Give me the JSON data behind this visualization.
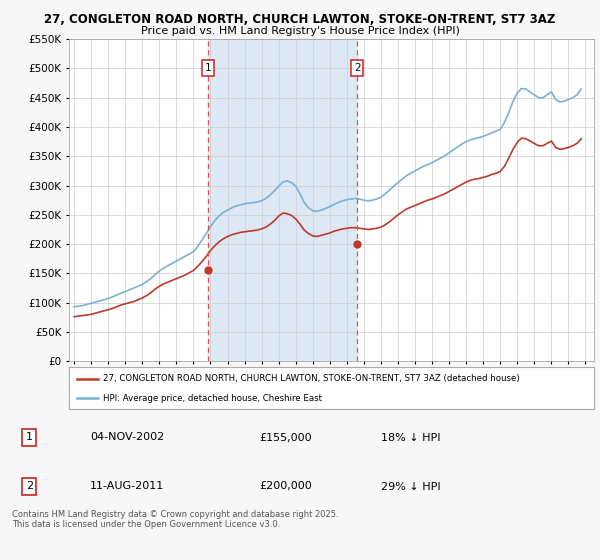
{
  "title": "27, CONGLETON ROAD NORTH, CHURCH LAWTON, STOKE-ON-TRENT, ST7 3AZ",
  "subtitle": "Price paid vs. HM Land Registry's House Price Index (HPI)",
  "bg_color": "#f7f7f7",
  "plot_bg_color": "#ffffff",
  "grid_color": "#cccccc",
  "hpi_color": "#7ab0d4",
  "price_color": "#c0392b",
  "marker_color": "#c0392b",
  "vline_color": "#e05050",
  "shade_color": "#dde8f5",
  "ylim": [
    0,
    550000
  ],
  "yticks": [
    0,
    50000,
    100000,
    150000,
    200000,
    250000,
    300000,
    350000,
    400000,
    450000,
    500000,
    550000
  ],
  "sale1_date": 2002.84,
  "sale1_price": 155000,
  "sale1_label": "1",
  "sale2_date": 2011.61,
  "sale2_price": 200000,
  "sale2_label": "2",
  "legend_line1": "27, CONGLETON ROAD NORTH, CHURCH LAWTON, STOKE-ON-TRENT, ST7 3AZ (detached house)",
  "legend_line2": "HPI: Average price, detached house, Cheshire East",
  "table_row1": [
    "1",
    "04-NOV-2002",
    "£155,000",
    "18% ↓ HPI"
  ],
  "table_row2": [
    "2",
    "11-AUG-2011",
    "£200,000",
    "29% ↓ HPI"
  ],
  "footer": "Contains HM Land Registry data © Crown copyright and database right 2025.\nThis data is licensed under the Open Government Licence v3.0.",
  "hpi_x": [
    1995.0,
    1995.25,
    1995.5,
    1995.75,
    1996.0,
    1996.25,
    1996.5,
    1996.75,
    1997.0,
    1997.25,
    1997.5,
    1997.75,
    1998.0,
    1998.25,
    1998.5,
    1998.75,
    1999.0,
    1999.25,
    1999.5,
    1999.75,
    2000.0,
    2000.25,
    2000.5,
    2000.75,
    2001.0,
    2001.25,
    2001.5,
    2001.75,
    2002.0,
    2002.25,
    2002.5,
    2002.75,
    2003.0,
    2003.25,
    2003.5,
    2003.75,
    2004.0,
    2004.25,
    2004.5,
    2004.75,
    2005.0,
    2005.25,
    2005.5,
    2005.75,
    2006.0,
    2006.25,
    2006.5,
    2006.75,
    2007.0,
    2007.25,
    2007.5,
    2007.75,
    2008.0,
    2008.25,
    2008.5,
    2008.75,
    2009.0,
    2009.25,
    2009.5,
    2009.75,
    2010.0,
    2010.25,
    2010.5,
    2010.75,
    2011.0,
    2011.25,
    2011.5,
    2011.75,
    2012.0,
    2012.25,
    2012.5,
    2012.75,
    2013.0,
    2013.25,
    2013.5,
    2013.75,
    2014.0,
    2014.25,
    2014.5,
    2014.75,
    2015.0,
    2015.25,
    2015.5,
    2015.75,
    2016.0,
    2016.25,
    2016.5,
    2016.75,
    2017.0,
    2017.25,
    2017.5,
    2017.75,
    2018.0,
    2018.25,
    2018.5,
    2018.75,
    2019.0,
    2019.25,
    2019.5,
    2019.75,
    2020.0,
    2020.25,
    2020.5,
    2020.75,
    2021.0,
    2021.25,
    2021.5,
    2021.75,
    2022.0,
    2022.25,
    2022.5,
    2022.75,
    2023.0,
    2023.25,
    2023.5,
    2023.75,
    2024.0,
    2024.25,
    2024.5,
    2024.75
  ],
  "hpi_y": [
    93000,
    94000,
    95000,
    97000,
    99000,
    101000,
    103000,
    105000,
    107000,
    110000,
    113000,
    116000,
    119000,
    122000,
    125000,
    128000,
    131000,
    136000,
    141000,
    148000,
    154000,
    159000,
    163000,
    167000,
    171000,
    175000,
    179000,
    183000,
    187000,
    196000,
    207000,
    218000,
    230000,
    240000,
    248000,
    254000,
    258000,
    262000,
    265000,
    267000,
    269000,
    270000,
    271000,
    272000,
    274000,
    278000,
    284000,
    291000,
    299000,
    306000,
    308000,
    305000,
    299000,
    286000,
    271000,
    262000,
    257000,
    256000,
    258000,
    261000,
    264000,
    268000,
    271000,
    274000,
    276000,
    277000,
    278000,
    277000,
    275000,
    274000,
    275000,
    277000,
    280000,
    286000,
    292000,
    299000,
    305000,
    311000,
    317000,
    321000,
    325000,
    329000,
    333000,
    336000,
    339000,
    343000,
    347000,
    351000,
    356000,
    361000,
    366000,
    371000,
    375000,
    378000,
    380000,
    382000,
    384000,
    387000,
    390000,
    393000,
    396000,
    408000,
    425000,
    444000,
    458000,
    466000,
    465000,
    460000,
    455000,
    450000,
    450000,
    455000,
    460000,
    447000,
    443000,
    444000,
    447000,
    450000,
    455000,
    465000
  ],
  "price_x": [
    1995.0,
    1995.25,
    1995.5,
    1995.75,
    1996.0,
    1996.25,
    1996.5,
    1996.75,
    1997.0,
    1997.25,
    1997.5,
    1997.75,
    1998.0,
    1998.25,
    1998.5,
    1998.75,
    1999.0,
    1999.25,
    1999.5,
    1999.75,
    2000.0,
    2000.25,
    2000.5,
    2000.75,
    2001.0,
    2001.25,
    2001.5,
    2001.75,
    2002.0,
    2002.25,
    2002.5,
    2002.75,
    2003.0,
    2003.25,
    2003.5,
    2003.75,
    2004.0,
    2004.25,
    2004.5,
    2004.75,
    2005.0,
    2005.25,
    2005.5,
    2005.75,
    2006.0,
    2006.25,
    2006.5,
    2006.75,
    2007.0,
    2007.25,
    2007.5,
    2007.75,
    2008.0,
    2008.25,
    2008.5,
    2008.75,
    2009.0,
    2009.25,
    2009.5,
    2009.75,
    2010.0,
    2010.25,
    2010.5,
    2010.75,
    2011.0,
    2011.25,
    2011.5,
    2011.75,
    2012.0,
    2012.25,
    2012.5,
    2012.75,
    2013.0,
    2013.25,
    2013.5,
    2013.75,
    2014.0,
    2014.25,
    2014.5,
    2014.75,
    2015.0,
    2015.25,
    2015.5,
    2015.75,
    2016.0,
    2016.25,
    2016.5,
    2016.75,
    2017.0,
    2017.25,
    2017.5,
    2017.75,
    2018.0,
    2018.25,
    2018.5,
    2018.75,
    2019.0,
    2019.25,
    2019.5,
    2019.75,
    2020.0,
    2020.25,
    2020.5,
    2020.75,
    2021.0,
    2021.25,
    2021.5,
    2021.75,
    2022.0,
    2022.25,
    2022.5,
    2022.75,
    2023.0,
    2023.25,
    2023.5,
    2023.75,
    2024.0,
    2024.25,
    2024.5,
    2024.75
  ],
  "price_y": [
    76000,
    77000,
    78000,
    79000,
    80000,
    82000,
    84000,
    86000,
    88000,
    90000,
    93000,
    96000,
    98000,
    100000,
    102000,
    105000,
    108000,
    112000,
    117000,
    123000,
    128000,
    132000,
    135000,
    138000,
    141000,
    144000,
    147000,
    151000,
    155000,
    162000,
    170000,
    179000,
    189000,
    197000,
    204000,
    209000,
    213000,
    216000,
    218000,
    220000,
    221000,
    222000,
    223000,
    224000,
    226000,
    229000,
    234000,
    240000,
    248000,
    253000,
    252000,
    249000,
    243000,
    234000,
    224000,
    218000,
    214000,
    213000,
    215000,
    217000,
    219000,
    222000,
    224000,
    226000,
    227000,
    228000,
    228000,
    227000,
    226000,
    225000,
    226000,
    227000,
    229000,
    233000,
    238000,
    244000,
    250000,
    255000,
    260000,
    263000,
    266000,
    269000,
    272000,
    275000,
    277000,
    280000,
    283000,
    286000,
    290000,
    294000,
    298000,
    302000,
    306000,
    309000,
    311000,
    312000,
    314000,
    316000,
    319000,
    321000,
    324000,
    333000,
    347000,
    362000,
    374000,
    381000,
    380000,
    376000,
    372000,
    368000,
    368000,
    372000,
    376000,
    365000,
    362000,
    363000,
    365000,
    368000,
    372000,
    380000
  ]
}
